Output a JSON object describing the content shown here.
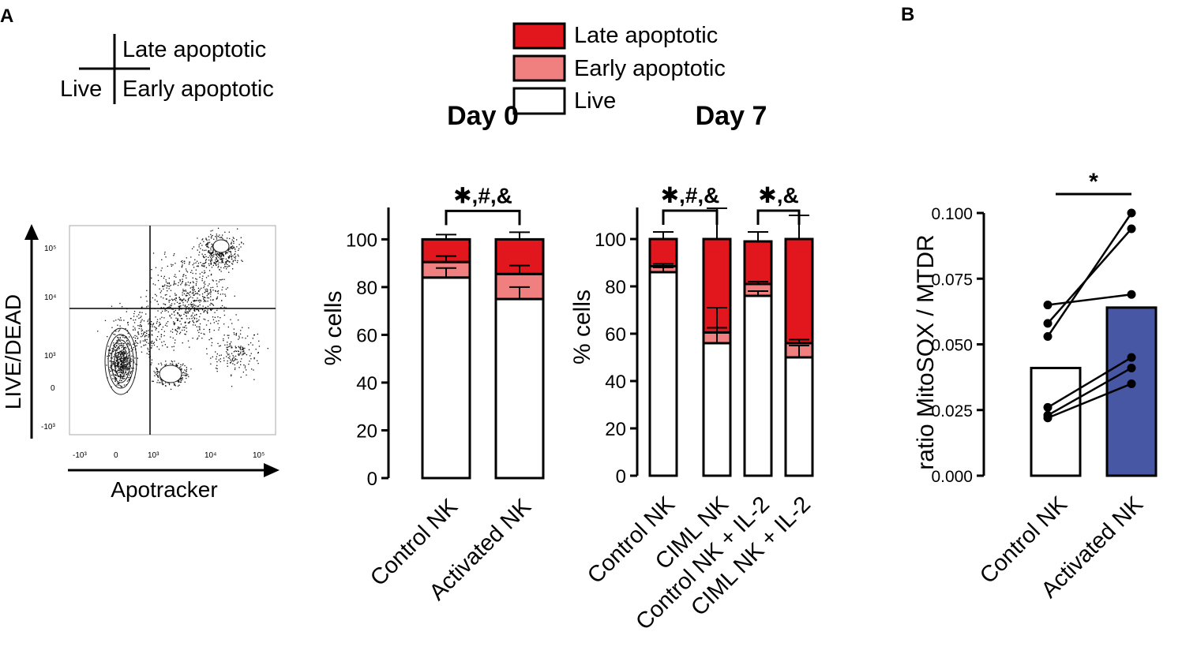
{
  "panel_labels": {
    "a": "A",
    "b": "B"
  },
  "colors": {
    "late": "#e2171e",
    "early": "#f08080",
    "live": "#ffffff",
    "activated": "#4757a4",
    "control": "#ffffff",
    "ink": "#000000"
  },
  "quadrant_key": {
    "late": "Late apoptotic",
    "live": "Live",
    "early": "Early apoptotic"
  },
  "legend": {
    "late": "Late apoptotic",
    "early": "Early apoptotic",
    "live": "Live"
  },
  "flow": {
    "ylabel": "LIVE/DEAD",
    "xlabel": "Apotracker",
    "y_ticks": [
      "10⁵",
      "10⁴",
      "10³",
      "0",
      "-10³"
    ],
    "x_ticks": [
      "-10³",
      "0",
      "10³",
      "10⁴",
      "10⁵"
    ]
  },
  "chart_data": [
    {
      "type": "bar",
      "subtype": "stacked",
      "title": "Day 0",
      "ylabel": "% cells",
      "ylim": [
        0,
        115
      ],
      "yticks": [
        0,
        20,
        40,
        60,
        80,
        100
      ],
      "categories": [
        "Control NK",
        "Activated NK"
      ],
      "series": [
        {
          "name": "Live",
          "values": [
            84,
            75
          ]
        },
        {
          "name": "Early apoptotic",
          "values": [
            6.5,
            10.5
          ]
        },
        {
          "name": "Late apoptotic",
          "values": [
            9.5,
            14.5
          ]
        }
      ],
      "errors": {
        "Live": [
          4,
          5
        ],
        "Early apoptotic": [
          2.5,
          3.5
        ],
        "Late apoptotic": [
          2,
          3
        ]
      },
      "significance": [
        {
          "from": 0,
          "to": 1,
          "label": "✱,#,&"
        }
      ]
    },
    {
      "type": "bar",
      "subtype": "stacked",
      "title": "Day 7",
      "ylabel": "% cells",
      "ylim": [
        0,
        115
      ],
      "yticks": [
        0,
        20,
        40,
        60,
        80,
        100
      ],
      "categories": [
        "Control NK",
        "CIML NK",
        "Control NK + IL-2",
        "CIML NK + IL-2"
      ],
      "series": [
        {
          "name": "Live",
          "values": [
            86,
            56,
            76,
            50
          ]
        },
        {
          "name": "Early apoptotic",
          "values": [
            2.5,
            4.5,
            5,
            6
          ]
        },
        {
          "name": "Late apoptotic",
          "values": [
            11.5,
            39.5,
            18,
            44
          ]
        }
      ],
      "errors": {
        "Live": [
          2,
          15,
          2,
          5
        ],
        "Early apoptotic": [
          1,
          2,
          1,
          1.5
        ],
        "Late apoptotic": [
          3,
          13,
          4,
          10
        ]
      },
      "significance": [
        {
          "from": 0,
          "to": 1,
          "label": "✱,#,&"
        },
        {
          "from": 2,
          "to": 3,
          "label": "✱,&"
        }
      ]
    },
    {
      "type": "bar",
      "subtype": "paired-points",
      "ylabel": "ratio MitoSOX / MTDR",
      "ylim": [
        0,
        0.1
      ],
      "yticks": [
        "0.000",
        "0.025",
        "0.050",
        "0.075",
        "0.100"
      ],
      "categories": [
        "Control NK",
        "Activated NK"
      ],
      "values": [
        0.041,
        0.064
      ],
      "pairs": [
        [
          0.065,
          0.069
        ],
        [
          0.058,
          0.094
        ],
        [
          0.053,
          0.1
        ],
        [
          0.026,
          0.045
        ],
        [
          0.023,
          0.041
        ],
        [
          0.022,
          0.035
        ]
      ],
      "significance": [
        {
          "from": 0,
          "to": 1,
          "label": "*"
        }
      ]
    }
  ]
}
